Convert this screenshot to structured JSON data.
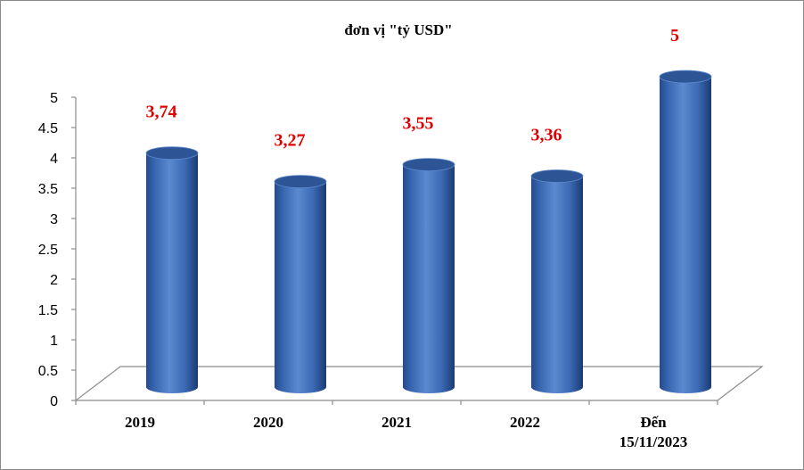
{
  "chart_data": {
    "type": "bar",
    "title": "đơn vị \"tỷ USD\"",
    "categories": [
      "2019",
      "2020",
      "2021",
      "2022",
      "Đến 15/11/2023"
    ],
    "values": [
      3.74,
      3.27,
      3.55,
      3.36,
      5
    ],
    "data_labels": [
      "3,74",
      "3,27",
      "3,55",
      "3,36",
      "5"
    ],
    "y_ticks": [
      "0",
      "0.5",
      "1",
      "1.5",
      "2",
      "2.5",
      "3",
      "3.5",
      "4",
      "4.5",
      "5"
    ],
    "ylim": [
      0,
      5
    ],
    "grid": false,
    "legend": "none",
    "bar_shape": "cylinder-3d",
    "colors": {
      "bar": "#3f6fba",
      "bar_dark": "#1f3f7c",
      "bar_top": "#2d5596",
      "data_label": "#e00000"
    }
  }
}
